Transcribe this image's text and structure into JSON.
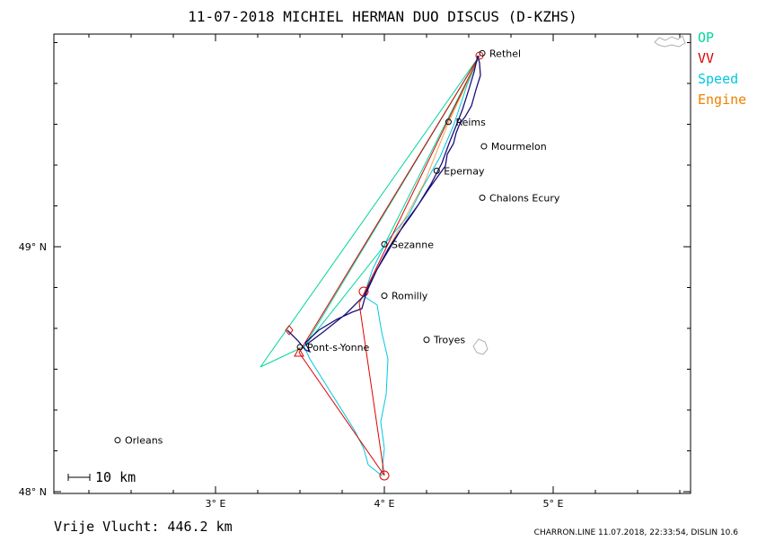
{
  "title": "11-07-2018    MICHIEL HERMAN    DUO DISCUS (D-KZHS)",
  "legend": [
    {
      "label": "OP",
      "color": "#00d69b"
    },
    {
      "label": "VV",
      "color": "#e00000"
    },
    {
      "label": "Speed",
      "color": "#00c8e0"
    },
    {
      "label": "Engine",
      "color": "#f08000"
    }
  ],
  "axes": {
    "x_ticks": [
      {
        "value": 3,
        "label": "3° E"
      },
      {
        "value": 4,
        "label": "4° E"
      },
      {
        "value": 5,
        "label": "5° E"
      }
    ],
    "y_ticks": [
      {
        "value": 49,
        "label": "49° N"
      },
      {
        "value": 48,
        "label": "48° N"
      }
    ]
  },
  "scale_label": "10 km",
  "cities": [
    {
      "name": "Rethel",
      "lon": 4.58,
      "lat": 49.79
    },
    {
      "name": "Reims",
      "lon": 4.38,
      "lat": 49.51
    },
    {
      "name": "Mourmelon",
      "lon": 4.59,
      "lat": 49.41
    },
    {
      "name": "Epernay",
      "lon": 4.31,
      "lat": 49.31
    },
    {
      "name": "Chalons Ecury",
      "lon": 4.58,
      "lat": 49.2
    },
    {
      "name": "Sezanne",
      "lon": 4.0,
      "lat": 49.01
    },
    {
      "name": "Romilly",
      "lon": 4.0,
      "lat": 48.8
    },
    {
      "name": "Troyes",
      "lon": 4.25,
      "lat": 48.62
    },
    {
      "name": "Pont-s-Yonne",
      "lon": 3.5,
      "lat": 48.59
    },
    {
      "name": "Orleans",
      "lon": 2.42,
      "lat": 48.21
    }
  ],
  "footer": {
    "distance": "Vrije Vlucht:  446.2 km",
    "program": "CHARRON.LINE 11.07.2018, 22:33:54, DISLIN 10.6"
  }
}
